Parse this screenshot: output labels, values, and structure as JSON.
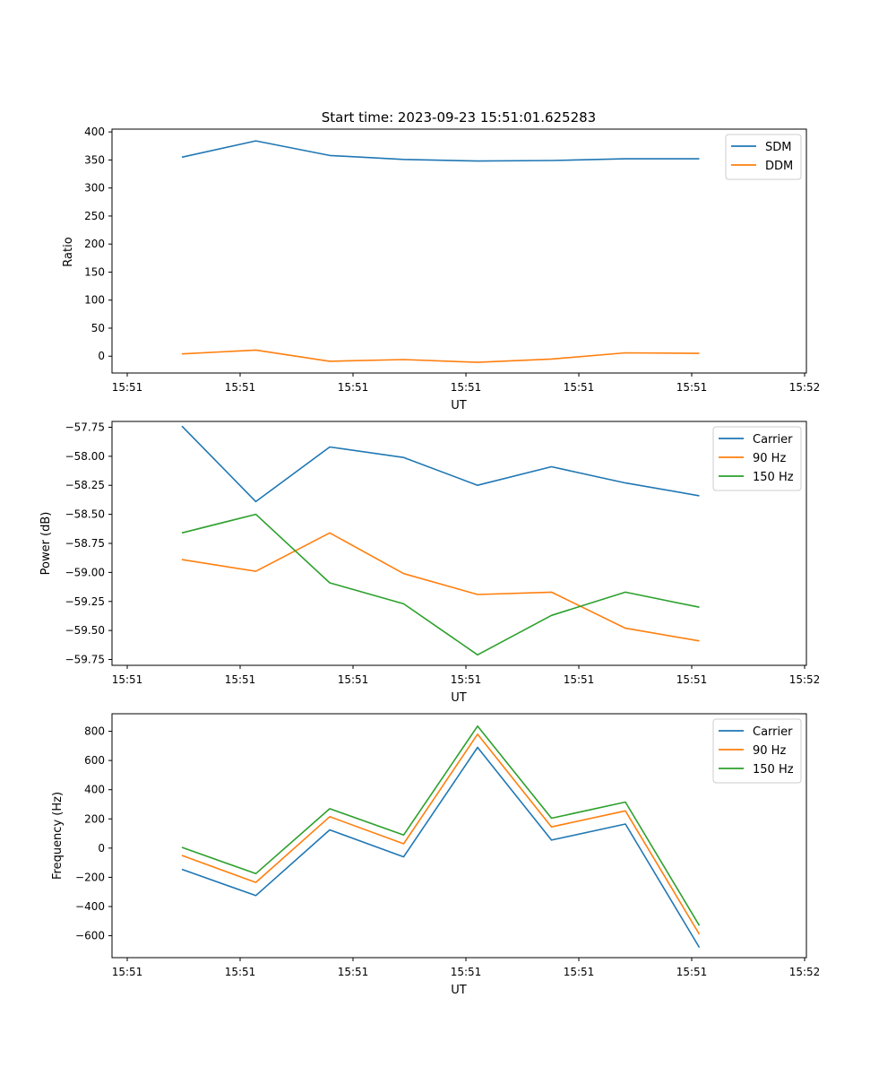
{
  "chart_data": [
    {
      "type": "line",
      "title": "Start time: 2023-09-23 15:51:01.625283",
      "xlabel": "UT",
      "ylabel": "Ratio",
      "x_ticks": [
        "15:51",
        "15:51",
        "15:51",
        "15:51",
        "15:51",
        "15:51",
        "15:52"
      ],
      "y_ticks": [
        "0",
        "50",
        "100",
        "150",
        "200",
        "250",
        "300",
        "350",
        "400"
      ],
      "ylim": [
        -30,
        405
      ],
      "legend_position": "top-right",
      "series": [
        {
          "name": "SDM",
          "color": "#1f77b4",
          "values": [
            355,
            384,
            358,
            351,
            348,
            349,
            352,
            352
          ]
        },
        {
          "name": "DDM",
          "color": "#ff7f0e",
          "values": [
            4,
            11,
            -9,
            -6,
            -11,
            -5,
            6,
            5
          ]
        }
      ]
    },
    {
      "type": "line",
      "title": "",
      "xlabel": "UT",
      "ylabel": "Power (dB)",
      "x_ticks": [
        "15:51",
        "15:51",
        "15:51",
        "15:51",
        "15:51",
        "15:51",
        "15:52"
      ],
      "y_ticks": [
        "−59.75",
        "−59.50",
        "−59.25",
        "−59.00",
        "−58.75",
        "−58.50",
        "−58.25",
        "−58.00",
        "−57.75"
      ],
      "ylim": [
        -59.8,
        -57.7
      ],
      "legend_position": "top-right",
      "series": [
        {
          "name": "Carrier",
          "color": "#1f77b4",
          "values": [
            -57.74,
            -58.39,
            -57.92,
            -58.01,
            -58.25,
            -58.09,
            -58.23,
            -58.34
          ]
        },
        {
          "name": "90 Hz",
          "color": "#ff7f0e",
          "values": [
            -58.89,
            -58.99,
            -58.66,
            -59.01,
            -59.19,
            -59.17,
            -59.48,
            -59.59
          ]
        },
        {
          "name": "150 Hz",
          "color": "#2ca02c",
          "values": [
            -58.66,
            -58.5,
            -59.09,
            -59.27,
            -59.71,
            -59.37,
            -59.17,
            -59.3
          ]
        }
      ]
    },
    {
      "type": "line",
      "title": "",
      "xlabel": "UT",
      "ylabel": "Frequency (Hz)",
      "x_ticks": [
        "15:51",
        "15:51",
        "15:51",
        "15:51",
        "15:51",
        "15:51",
        "15:52"
      ],
      "y_ticks": [
        "−600",
        "−400",
        "−200",
        "0",
        "200",
        "400",
        "600",
        "800"
      ],
      "ylim": [
        -750,
        920
      ],
      "legend_position": "top-right",
      "series": [
        {
          "name": "Carrier",
          "color": "#1f77b4",
          "values": [
            -145,
            -325,
            125,
            -60,
            690,
            55,
            165,
            -680
          ]
        },
        {
          "name": "90 Hz",
          "color": "#ff7f0e",
          "values": [
            -50,
            -235,
            215,
            30,
            780,
            145,
            255,
            -590
          ]
        },
        {
          "name": "150 Hz",
          "color": "#2ca02c",
          "values": [
            5,
            -175,
            270,
            90,
            835,
            205,
            315,
            -530
          ]
        }
      ]
    }
  ]
}
